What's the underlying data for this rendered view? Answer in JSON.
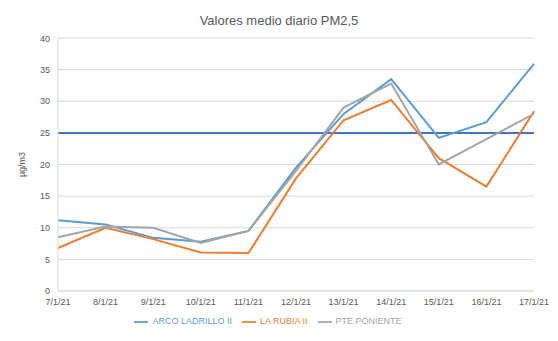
{
  "chart_data": {
    "type": "line",
    "title": "Valores medio diario PM2,5",
    "y_label": "µg/m3",
    "categories": [
      "7/1/21",
      "8/1/21",
      "9/1/21",
      "10/1/21",
      "11/1/21",
      "12/1/21",
      "13/1/21",
      "14/1/21",
      "15/1/21",
      "16/1/21",
      "17/1/21"
    ],
    "series": [
      {
        "name": "ARCO LADRILLO II",
        "color": "#5B9BD5",
        "values": [
          11.2,
          10.5,
          8.4,
          7.8,
          9.5,
          19.5,
          28,
          33.5,
          24.2,
          26.7,
          35.9
        ]
      },
      {
        "name": "LA RUBIA II",
        "color": "#ED7D31",
        "values": [
          6.8,
          10.0,
          8.2,
          6.1,
          6.0,
          17.8,
          27,
          30.2,
          21,
          16.5,
          28.4
        ]
      },
      {
        "name": "PTE PONIENTE",
        "color": "#A5A5A5",
        "values": [
          8.5,
          10.2,
          10.0,
          7.6,
          9.5,
          19,
          29,
          32.8,
          20,
          24,
          28
        ]
      }
    ],
    "reference_line": {
      "value": 25,
      "color": "#4472C4"
    },
    "ylim": [
      0,
      40
    ],
    "yticks": [
      0,
      5,
      10,
      15,
      20,
      25,
      30,
      35,
      40
    ],
    "grid": true,
    "legend": "bottom"
  }
}
